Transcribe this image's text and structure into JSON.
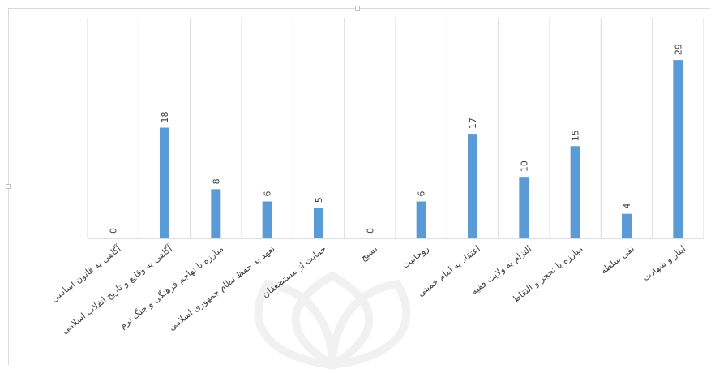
{
  "chart_data": {
    "type": "bar",
    "title": "",
    "xlabel": "",
    "ylabel": "",
    "ylim": [
      0,
      30
    ],
    "grid": "vertical category separators",
    "legend": "none",
    "bar_color": "#5b9bd5",
    "categories": [
      "آگاهی به قانون اساسی",
      "آگاهی به وقایع و تاریخ انقلاب اسلامی",
      "مبارزه با تهاجم فرهنگی و جنگ نرم",
      "تعهد به حفظ نظام جمهوری اسلامی",
      "حمایت از مستضعفان",
      "بسیج",
      "روحانیت",
      "اعتقاد به امام خمینی",
      "التزام به ولایت فقیه",
      "مبارزه با تحجر و التقاط",
      "نفی سلطه",
      "ایثار و شهادت"
    ],
    "values": [
      0,
      18,
      8,
      6,
      5,
      0,
      6,
      17,
      10,
      15,
      4,
      29
    ],
    "data_labels": [
      "0",
      "18",
      "8",
      "6",
      "5",
      "0",
      "6",
      "17",
      "10",
      "15",
      "4",
      "29"
    ]
  }
}
